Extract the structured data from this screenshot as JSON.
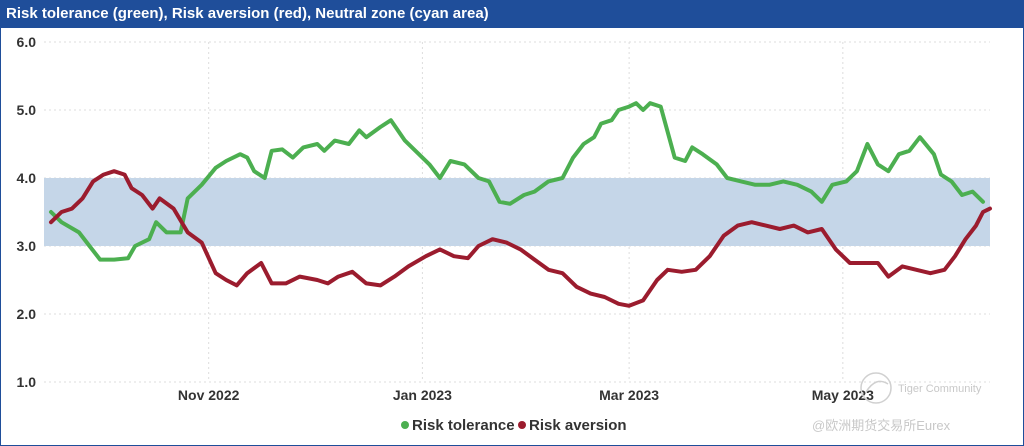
{
  "chart_data": {
    "type": "line",
    "title": "Risk tolerance (green), Risk aversion (red), Neutral zone (cyan area)",
    "ylim": [
      1.0,
      6.0
    ],
    "yticks": [
      "6.0",
      "5.0",
      "4.0",
      "3.0",
      "2.0",
      "1.0"
    ],
    "xticks": [
      {
        "label": "Nov 2022",
        "x": "2022-11-01"
      },
      {
        "label": "Jan 2023",
        "x": "2023-01-01"
      },
      {
        "label": "Mar 2023",
        "x": "2023-03-01"
      },
      {
        "label": "May 2023",
        "x": "2023-05-01"
      }
    ],
    "xlim": [
      "2022-09-15",
      "2023-06-12"
    ],
    "grid": true,
    "legend_position": "bottom",
    "neutral_zone": {
      "low": 3.0,
      "high": 4.0,
      "color": "#c5d6e8"
    },
    "series": [
      {
        "name": "Risk tolerance",
        "color": "#4caf50",
        "points": [
          [
            "2022-09-17",
            3.5
          ],
          [
            "2022-09-20",
            3.35
          ],
          [
            "2022-09-25",
            3.2
          ],
          [
            "2022-09-28",
            3.0
          ],
          [
            "2022-10-01",
            2.8
          ],
          [
            "2022-10-05",
            2.8
          ],
          [
            "2022-10-09",
            2.82
          ],
          [
            "2022-10-11",
            3.0
          ],
          [
            "2022-10-15",
            3.1
          ],
          [
            "2022-10-17",
            3.35
          ],
          [
            "2022-10-20",
            3.2
          ],
          [
            "2022-10-24",
            3.2
          ],
          [
            "2022-10-26",
            3.7
          ],
          [
            "2022-10-30",
            3.9
          ],
          [
            "2022-11-03",
            4.15
          ],
          [
            "2022-11-06",
            4.25
          ],
          [
            "2022-11-10",
            4.35
          ],
          [
            "2022-11-12",
            4.3
          ],
          [
            "2022-11-14",
            4.1
          ],
          [
            "2022-11-17",
            4.0
          ],
          [
            "2022-11-19",
            4.4
          ],
          [
            "2022-11-22",
            4.42
          ],
          [
            "2022-11-25",
            4.3
          ],
          [
            "2022-11-28",
            4.45
          ],
          [
            "2022-12-02",
            4.5
          ],
          [
            "2022-12-04",
            4.4
          ],
          [
            "2022-12-07",
            4.55
          ],
          [
            "2022-12-11",
            4.5
          ],
          [
            "2022-12-14",
            4.7
          ],
          [
            "2022-12-16",
            4.6
          ],
          [
            "2022-12-20",
            4.75
          ],
          [
            "2022-12-23",
            4.85
          ],
          [
            "2022-12-27",
            4.55
          ],
          [
            "2022-12-31",
            4.35
          ],
          [
            "2023-01-03",
            4.2
          ],
          [
            "2023-01-06",
            4.0
          ],
          [
            "2023-01-09",
            4.25
          ],
          [
            "2023-01-13",
            4.2
          ],
          [
            "2023-01-17",
            4.0
          ],
          [
            "2023-01-20",
            3.95
          ],
          [
            "2023-01-23",
            3.65
          ],
          [
            "2023-01-26",
            3.62
          ],
          [
            "2023-01-30",
            3.75
          ],
          [
            "2023-02-02",
            3.8
          ],
          [
            "2023-02-06",
            3.95
          ],
          [
            "2023-02-10",
            4.0
          ],
          [
            "2023-02-13",
            4.3
          ],
          [
            "2023-02-16",
            4.5
          ],
          [
            "2023-02-19",
            4.6
          ],
          [
            "2023-02-21",
            4.8
          ],
          [
            "2023-02-24",
            4.85
          ],
          [
            "2023-02-26",
            5.0
          ],
          [
            "2023-03-01",
            5.05
          ],
          [
            "2023-03-03",
            5.1
          ],
          [
            "2023-03-05",
            5.0
          ],
          [
            "2023-03-07",
            5.1
          ],
          [
            "2023-03-10",
            5.05
          ],
          [
            "2023-03-14",
            4.3
          ],
          [
            "2023-03-17",
            4.25
          ],
          [
            "2023-03-19",
            4.45
          ],
          [
            "2023-03-22",
            4.35
          ],
          [
            "2023-03-26",
            4.2
          ],
          [
            "2023-03-29",
            4.0
          ],
          [
            "2023-04-02",
            3.95
          ],
          [
            "2023-04-06",
            3.9
          ],
          [
            "2023-04-10",
            3.9
          ],
          [
            "2023-04-14",
            3.95
          ],
          [
            "2023-04-18",
            3.9
          ],
          [
            "2023-04-22",
            3.8
          ],
          [
            "2023-04-25",
            3.65
          ],
          [
            "2023-04-28",
            3.9
          ],
          [
            "2023-05-02",
            3.95
          ],
          [
            "2023-05-05",
            4.1
          ],
          [
            "2023-05-08",
            4.5
          ],
          [
            "2023-05-11",
            4.2
          ],
          [
            "2023-05-14",
            4.1
          ],
          [
            "2023-05-17",
            4.35
          ],
          [
            "2023-05-20",
            4.4
          ],
          [
            "2023-05-23",
            4.6
          ],
          [
            "2023-05-27",
            4.35
          ],
          [
            "2023-05-29",
            4.05
          ],
          [
            "2023-06-01",
            3.95
          ],
          [
            "2023-06-04",
            3.75
          ],
          [
            "2023-06-07",
            3.8
          ],
          [
            "2023-06-10",
            3.65
          ]
        ]
      },
      {
        "name": "Risk aversion",
        "color": "#9b1c2e",
        "points": [
          [
            "2022-09-17",
            3.35
          ],
          [
            "2022-09-20",
            3.5
          ],
          [
            "2022-09-23",
            3.55
          ],
          [
            "2022-09-26",
            3.7
          ],
          [
            "2022-09-29",
            3.95
          ],
          [
            "2022-10-02",
            4.05
          ],
          [
            "2022-10-05",
            4.1
          ],
          [
            "2022-10-08",
            4.05
          ],
          [
            "2022-10-10",
            3.85
          ],
          [
            "2022-10-13",
            3.75
          ],
          [
            "2022-10-16",
            3.55
          ],
          [
            "2022-10-18",
            3.7
          ],
          [
            "2022-10-22",
            3.55
          ],
          [
            "2022-10-26",
            3.2
          ],
          [
            "2022-10-30",
            3.05
          ],
          [
            "2022-11-03",
            2.6
          ],
          [
            "2022-11-06",
            2.5
          ],
          [
            "2022-11-09",
            2.42
          ],
          [
            "2022-11-12",
            2.6
          ],
          [
            "2022-11-16",
            2.75
          ],
          [
            "2022-11-19",
            2.45
          ],
          [
            "2022-11-23",
            2.45
          ],
          [
            "2022-11-27",
            2.55
          ],
          [
            "2022-12-02",
            2.5
          ],
          [
            "2022-12-05",
            2.45
          ],
          [
            "2022-12-08",
            2.55
          ],
          [
            "2022-12-12",
            2.62
          ],
          [
            "2022-12-16",
            2.45
          ],
          [
            "2022-12-20",
            2.42
          ],
          [
            "2022-12-24",
            2.55
          ],
          [
            "2022-12-28",
            2.7
          ],
          [
            "2023-01-02",
            2.85
          ],
          [
            "2023-01-06",
            2.95
          ],
          [
            "2023-01-10",
            2.85
          ],
          [
            "2023-01-14",
            2.82
          ],
          [
            "2023-01-17",
            3.0
          ],
          [
            "2023-01-21",
            3.1
          ],
          [
            "2023-01-25",
            3.05
          ],
          [
            "2023-01-29",
            2.95
          ],
          [
            "2023-02-02",
            2.8
          ],
          [
            "2023-02-06",
            2.65
          ],
          [
            "2023-02-10",
            2.6
          ],
          [
            "2023-02-14",
            2.4
          ],
          [
            "2023-02-18",
            2.3
          ],
          [
            "2023-02-22",
            2.25
          ],
          [
            "2023-02-26",
            2.15
          ],
          [
            "2023-03-01",
            2.12
          ],
          [
            "2023-03-05",
            2.2
          ],
          [
            "2023-03-09",
            2.5
          ],
          [
            "2023-03-12",
            2.65
          ],
          [
            "2023-03-16",
            2.62
          ],
          [
            "2023-03-20",
            2.65
          ],
          [
            "2023-03-24",
            2.85
          ],
          [
            "2023-03-28",
            3.15
          ],
          [
            "2023-04-01",
            3.3
          ],
          [
            "2023-04-05",
            3.35
          ],
          [
            "2023-04-09",
            3.3
          ],
          [
            "2023-04-13",
            3.25
          ],
          [
            "2023-04-17",
            3.3
          ],
          [
            "2023-04-21",
            3.2
          ],
          [
            "2023-04-25",
            3.25
          ],
          [
            "2023-04-29",
            2.95
          ],
          [
            "2023-05-03",
            2.75
          ],
          [
            "2023-05-07",
            2.75
          ],
          [
            "2023-05-11",
            2.75
          ],
          [
            "2023-05-14",
            2.55
          ],
          [
            "2023-05-18",
            2.7
          ],
          [
            "2023-05-22",
            2.65
          ],
          [
            "2023-05-26",
            2.6
          ],
          [
            "2023-05-30",
            2.65
          ],
          [
            "2023-06-02",
            2.85
          ],
          [
            "2023-06-05",
            3.1
          ],
          [
            "2023-06-08",
            3.3
          ],
          [
            "2023-06-10",
            3.5
          ],
          [
            "2023-06-12",
            3.55
          ]
        ]
      }
    ]
  },
  "watermark": {
    "brand": "Tiger Community",
    "handle": "@欧洲期货交易所Eurex"
  }
}
